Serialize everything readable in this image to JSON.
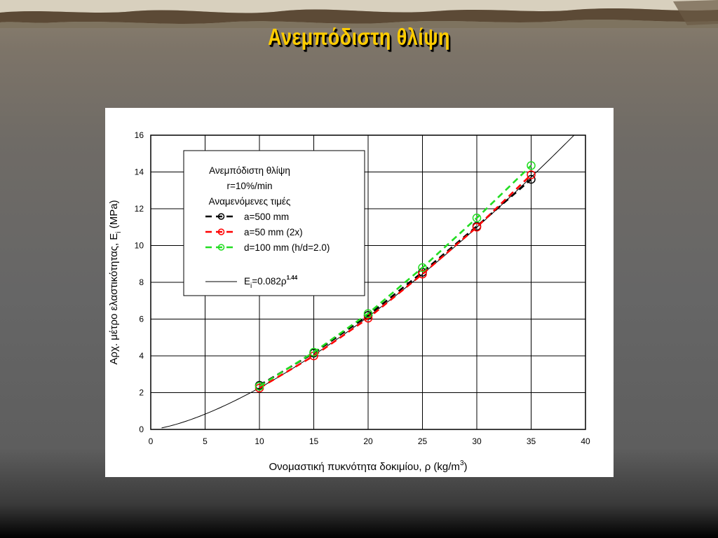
{
  "slide": {
    "title": "Ανεμπόδιστη θλίψη"
  },
  "chart_data": {
    "type": "scatter",
    "xlabel": "Ονομαστική πυκνότητα δοκιμίου, ρ (kg/m",
    "xlabel_sup": "3",
    "xlabel_end": ")",
    "ylabel_main": "Αρχ. μέτρο ελαστικότητας, E",
    "ylabel_sub": "i",
    "ylabel_end": " (MPa)",
    "xlim": [
      0,
      40
    ],
    "ylim": [
      0,
      16
    ],
    "xticks": [
      0,
      5,
      10,
      15,
      20,
      25,
      30,
      35,
      40
    ],
    "yticks": [
      0,
      2,
      4,
      6,
      8,
      10,
      12,
      14,
      16
    ],
    "grid": true,
    "legend": {
      "placement": "top-left",
      "title_lines": [
        "Ανεμπόδιστη θλίψη",
        "r=10%/min",
        "Αναμενόμενες τιμές"
      ],
      "fit_label_prefix": "E",
      "fit_label_sub": "i",
      "fit_label_mid": "=0.082ρ",
      "fit_label_sup": "1.44"
    },
    "series": [
      {
        "name": "a=500 mm",
        "color": "#000000",
        "x": [
          10,
          15,
          20,
          25,
          30,
          35
        ],
        "y": [
          2.4,
          4.15,
          6.2,
          8.55,
          11.05,
          13.6
        ]
      },
      {
        "name": "a=50 mm  (2x)",
        "color": "#ff0000",
        "x": [
          10,
          15,
          20,
          25,
          30,
          35
        ],
        "y": [
          2.25,
          4.0,
          6.05,
          8.45,
          11.0,
          13.85
        ]
      },
      {
        "name": "d=100 mm (h/d=2.0)",
        "color": "#22dd22",
        "x": [
          10,
          15,
          20,
          25,
          30,
          35
        ],
        "y": [
          2.35,
          4.2,
          6.3,
          8.8,
          11.5,
          14.35
        ]
      }
    ],
    "fit": {
      "a": 0.082,
      "b": 1.44,
      "x_range": [
        1,
        40
      ]
    }
  }
}
